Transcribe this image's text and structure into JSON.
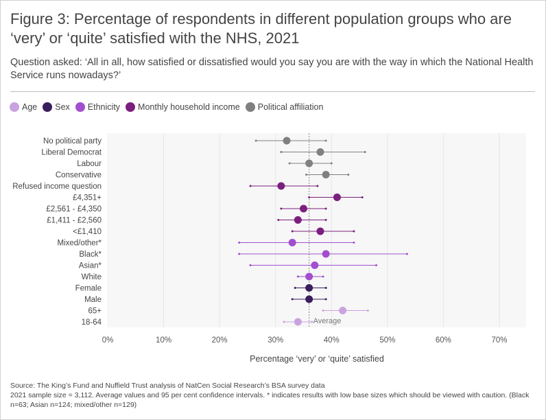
{
  "title": "Figure 3: Percentage of respondents in different population groups who are ‘very’ or ‘quite’ satisfied with the NHS, 2021",
  "subtitle": "Question asked: ‘All in all, how satisfied or dissatisfied would you say you are with the way in which the National Health Service runs nowadays?’",
  "legend": [
    {
      "label": "Age",
      "color": "#c9a3e0"
    },
    {
      "label": "Sex",
      "color": "#3a1d5c"
    },
    {
      "label": "Ethnicity",
      "color": "#a24fcf"
    },
    {
      "label": "Monthly household income",
      "color": "#7b1f7e"
    },
    {
      "label": "Political affiliation",
      "color": "#808080"
    }
  ],
  "footnote": {
    "source": "Source: The King’s Fund and Nuffield Trust analysis of NatCen Social Research’s BSA survey data",
    "notes": "2021 sample size = 3,112. Average values and 95 per cent confidence intervals. * indicates results with low base sizes which should be viewed with caution. (Black n=63; Asian n=124; mixed/other n=129)"
  },
  "chart_data": {
    "type": "scatter",
    "title": "Figure 3: Percentage of respondents in different population groups who are ‘very’ or ‘quite’ satisfied with the NHS, 2021",
    "xlabel": "Percentage ‘very’ or ‘quite’ satisfied",
    "ylabel": "",
    "xlim": [
      0,
      75
    ],
    "xticks": [
      0,
      10,
      20,
      30,
      40,
      50,
      60,
      70
    ],
    "xtick_labels": [
      "0%",
      "10%",
      "20%",
      "30%",
      "40%",
      "50%",
      "60%",
      "70%"
    ],
    "average": 36,
    "average_label": "Average",
    "categories": [
      {
        "label": "No political party",
        "group": "Political affiliation",
        "value": 32,
        "low": 26.5,
        "high": 39
      },
      {
        "label": "Liberal Democrat",
        "group": "Political affiliation",
        "value": 38,
        "low": 31,
        "high": 46
      },
      {
        "label": "Labour",
        "group": "Political affiliation",
        "value": 36,
        "low": 32.5,
        "high": 40
      },
      {
        "label": "Conservative",
        "group": "Political affiliation",
        "value": 39,
        "low": 35.5,
        "high": 43
      },
      {
        "label": "Refused income question",
        "group": "Monthly household income",
        "value": 31,
        "low": 25.5,
        "high": 37.5
      },
      {
        "label": "£4,351+",
        "group": "Monthly household income",
        "value": 41,
        "low": 36,
        "high": 45.5
      },
      {
        "label": "£2,561 - £4,350",
        "group": "Monthly household income",
        "value": 35,
        "low": 31,
        "high": 39
      },
      {
        "label": "£1,411 - £2,560",
        "group": "Monthly household income",
        "value": 34,
        "low": 30.5,
        "high": 39
      },
      {
        "label": "<£1,410",
        "group": "Monthly household income",
        "value": 38,
        "low": 33,
        "high": 44
      },
      {
        "label": "Mixed/other*",
        "group": "Ethnicity",
        "value": 33,
        "low": 23.5,
        "high": 44
      },
      {
        "label": "Black*",
        "group": "Ethnicity",
        "value": 39,
        "low": 23.5,
        "high": 53.5
      },
      {
        "label": "Asian*",
        "group": "Ethnicity",
        "value": 37,
        "low": 25.5,
        "high": 48
      },
      {
        "label": "White",
        "group": "Ethnicity",
        "value": 36,
        "low": 34,
        "high": 38.5
      },
      {
        "label": "Female",
        "group": "Sex",
        "value": 36,
        "low": 33.5,
        "high": 39
      },
      {
        "label": "Male",
        "group": "Sex",
        "value": 36,
        "low": 33,
        "high": 39
      },
      {
        "label": "65+",
        "group": "Age",
        "value": 42,
        "low": 38.5,
        "high": 46.5
      },
      {
        "label": "18-64",
        "group": "Age",
        "value": 34,
        "low": 31.5,
        "high": 36.5
      }
    ]
  }
}
